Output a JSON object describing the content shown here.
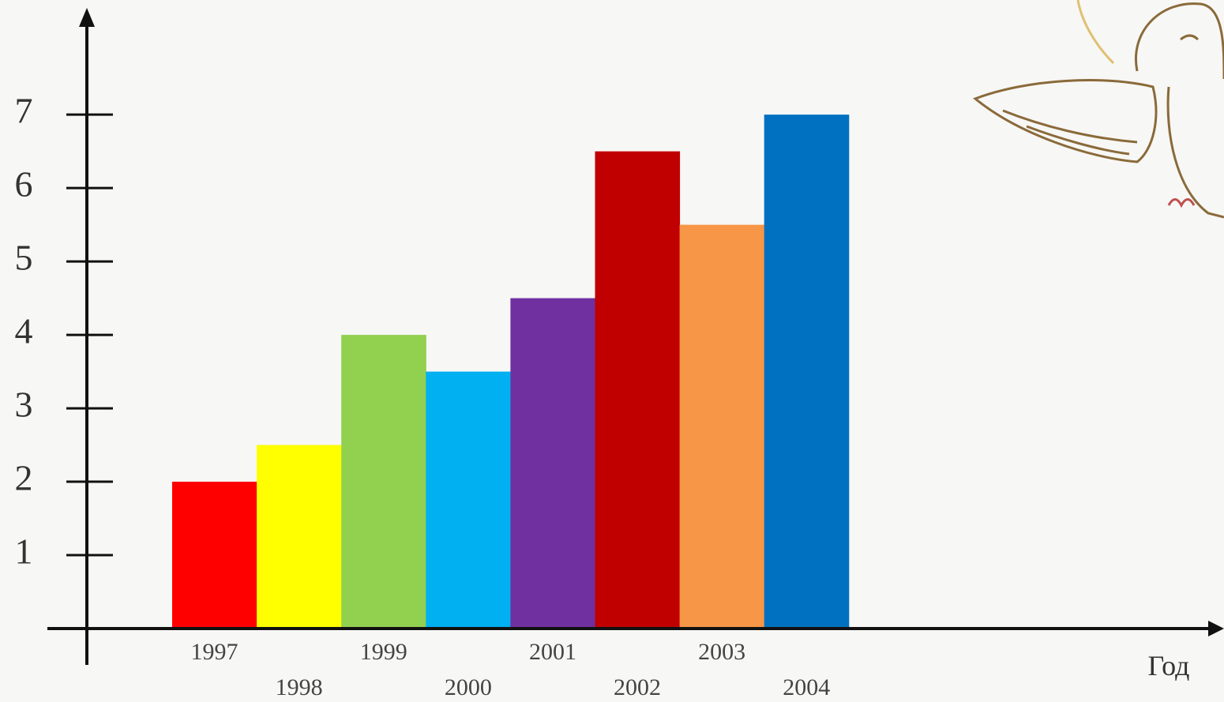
{
  "chart_data": {
    "type": "bar",
    "x_label": "Год",
    "categories": [
      "1997",
      "1998",
      "1999",
      "2000",
      "2001",
      "2002",
      "2003",
      "2004"
    ],
    "values": [
      2,
      2.5,
      4,
      3.5,
      4.5,
      6.5,
      5.5,
      7
    ],
    "colors": [
      "#ff0000",
      "#ffff00",
      "#92d050",
      "#00b0f0",
      "#7030a0",
      "#c00000",
      "#f79646",
      "#0070c0"
    ],
    "ylim": [
      0,
      8.4
    ],
    "yticks": [
      1,
      2,
      3,
      4,
      5,
      6,
      7
    ]
  }
}
